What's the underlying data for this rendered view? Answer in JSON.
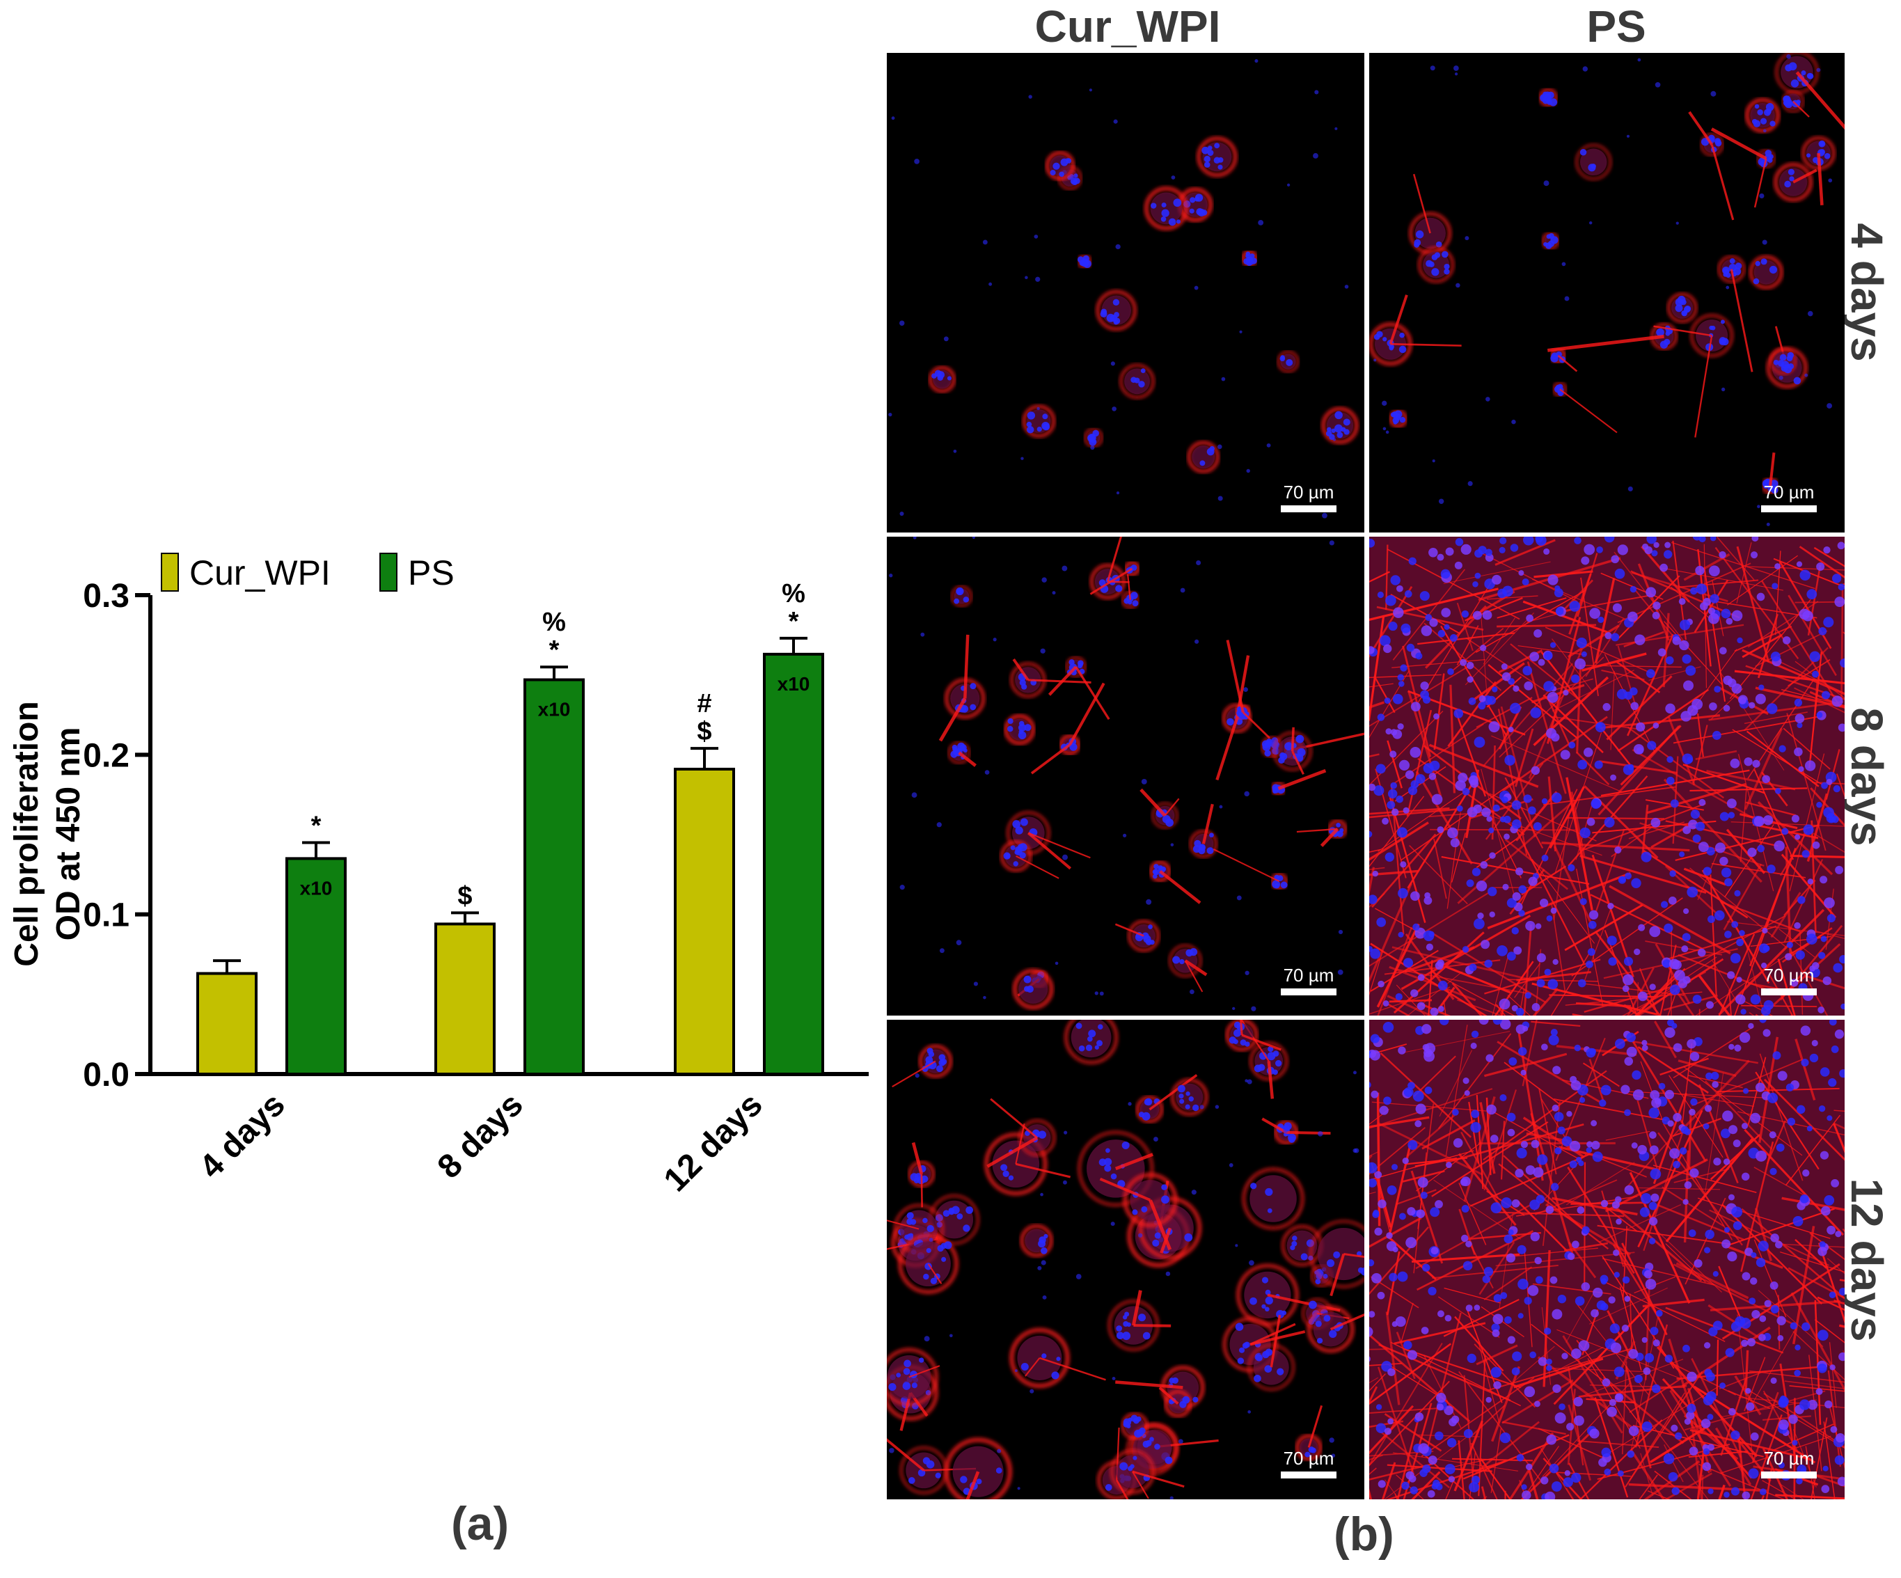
{
  "chart_data": {
    "type": "bar",
    "categories": [
      "4 days",
      "8 days",
      "12 days"
    ],
    "series": [
      {
        "name": "Cur_WPI",
        "color": "#c3c000",
        "values": [
          0.063,
          0.094,
          0.191
        ],
        "errors": [
          0.008,
          0.007,
          0.013
        ],
        "annotations": [
          [],
          [
            "$"
          ],
          [
            "$",
            "#"
          ]
        ],
        "bar_labels": [
          "",
          "",
          ""
        ]
      },
      {
        "name": "PS",
        "color": "#0e7f10",
        "values": [
          0.135,
          0.247,
          0.263
        ],
        "errors": [
          0.01,
          0.008,
          0.01
        ],
        "annotations": [
          [
            "*"
          ],
          [
            "*",
            "%"
          ],
          [
            "*",
            "%"
          ]
        ],
        "bar_labels": [
          "x10",
          "x10",
          "x10"
        ]
      }
    ],
    "ylabel_line1": "Cell proliferation",
    "ylabel_line2": "OD at 450 nm",
    "ylim": [
      0,
      0.3
    ],
    "yticks": [
      0.0,
      0.1,
      0.2,
      0.3
    ],
    "ytick_labels": [
      "0.0",
      "0.1",
      "0.2",
      "0.3"
    ],
    "legend_position": "top-left"
  },
  "panel_a_label": "(a)",
  "panel_b_label": "(b)",
  "micrographs": {
    "columns": [
      "Cur_WPI",
      "PS"
    ],
    "rows": [
      "4 days",
      "8 days",
      "12 days"
    ],
    "scale_bar": "70 µm",
    "stain_colors": {
      "actin": "#ff1a1a",
      "nuclei": "#2a2aff",
      "background": "#000000"
    }
  }
}
